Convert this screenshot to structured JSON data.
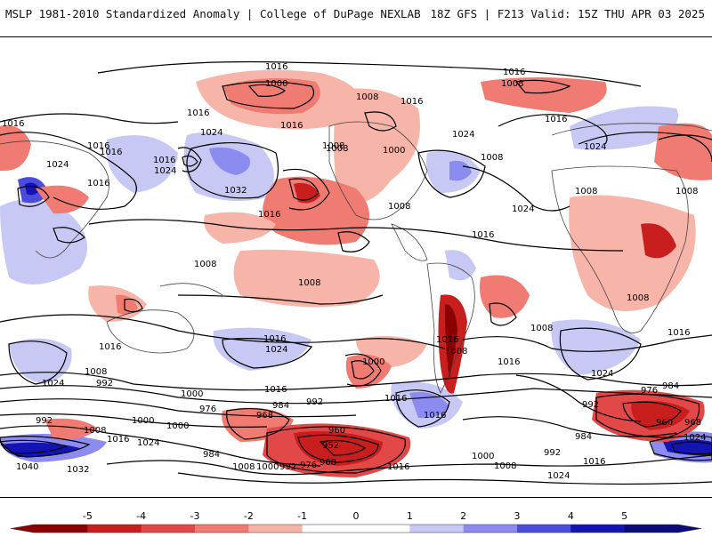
{
  "header": {
    "left_title": "MSLP 1981-2010 Standardized Anomaly | College of DuPage NEXLAB",
    "right_title": "18Z GFS | F213 Valid: 15Z THU APR 03 2025"
  },
  "colorbar": {
    "ticks": [
      "-5",
      "-4",
      "-3",
      "-2",
      "-1",
      "0",
      "1",
      "2",
      "3",
      "4",
      "5"
    ],
    "colors": [
      "#8b0000",
      "#c81e1e",
      "#e34848",
      "#f07b72",
      "#f7b4a8",
      "#ffffff",
      "#ffffff",
      "#c8c8f5",
      "#8c8cf0",
      "#4b4bdc",
      "#1414b4",
      "#0a0a78"
    ]
  },
  "map": {
    "contour_labels": [
      "1016",
      "1016",
      "1008",
      "1000",
      "1016",
      "1008",
      "1016",
      "1016",
      "1016",
      "1016",
      "1024",
      "1016",
      "1024",
      "1016",
      "1016",
      "1008",
      "1016",
      "1024",
      "1032",
      "1008",
      "1000",
      "1024",
      "1008",
      "1008",
      "1024",
      "1008",
      "1008",
      "1016",
      "1024",
      "1016",
      "1008",
      "1008",
      "1008",
      "1016",
      "1016",
      "1016",
      "1024",
      "1000",
      "1016",
      "1008",
      "1016",
      "1008",
      "1024",
      "992",
      "1000",
      "976",
      "1008",
      "984",
      "992",
      "1016",
      "1024",
      "968",
      "960",
      "952",
      "992",
      "1000",
      "968",
      "976",
      "984",
      "1008",
      "1000",
      "992",
      "1016",
      "1024",
      "1008",
      "1000",
      "1040",
      "1032",
      "1016",
      "1000",
      "984",
      "992",
      "1008",
      "1016",
      "1024",
      "1016",
      "960",
      "968",
      "976",
      "984",
      "1024",
      "992",
      "1016"
    ],
    "colors": {
      "anomaly_pos": "#c8c8f5",
      "anomaly_neg": "#f4a090",
      "contour": "#000000",
      "coast": "#444444"
    }
  }
}
